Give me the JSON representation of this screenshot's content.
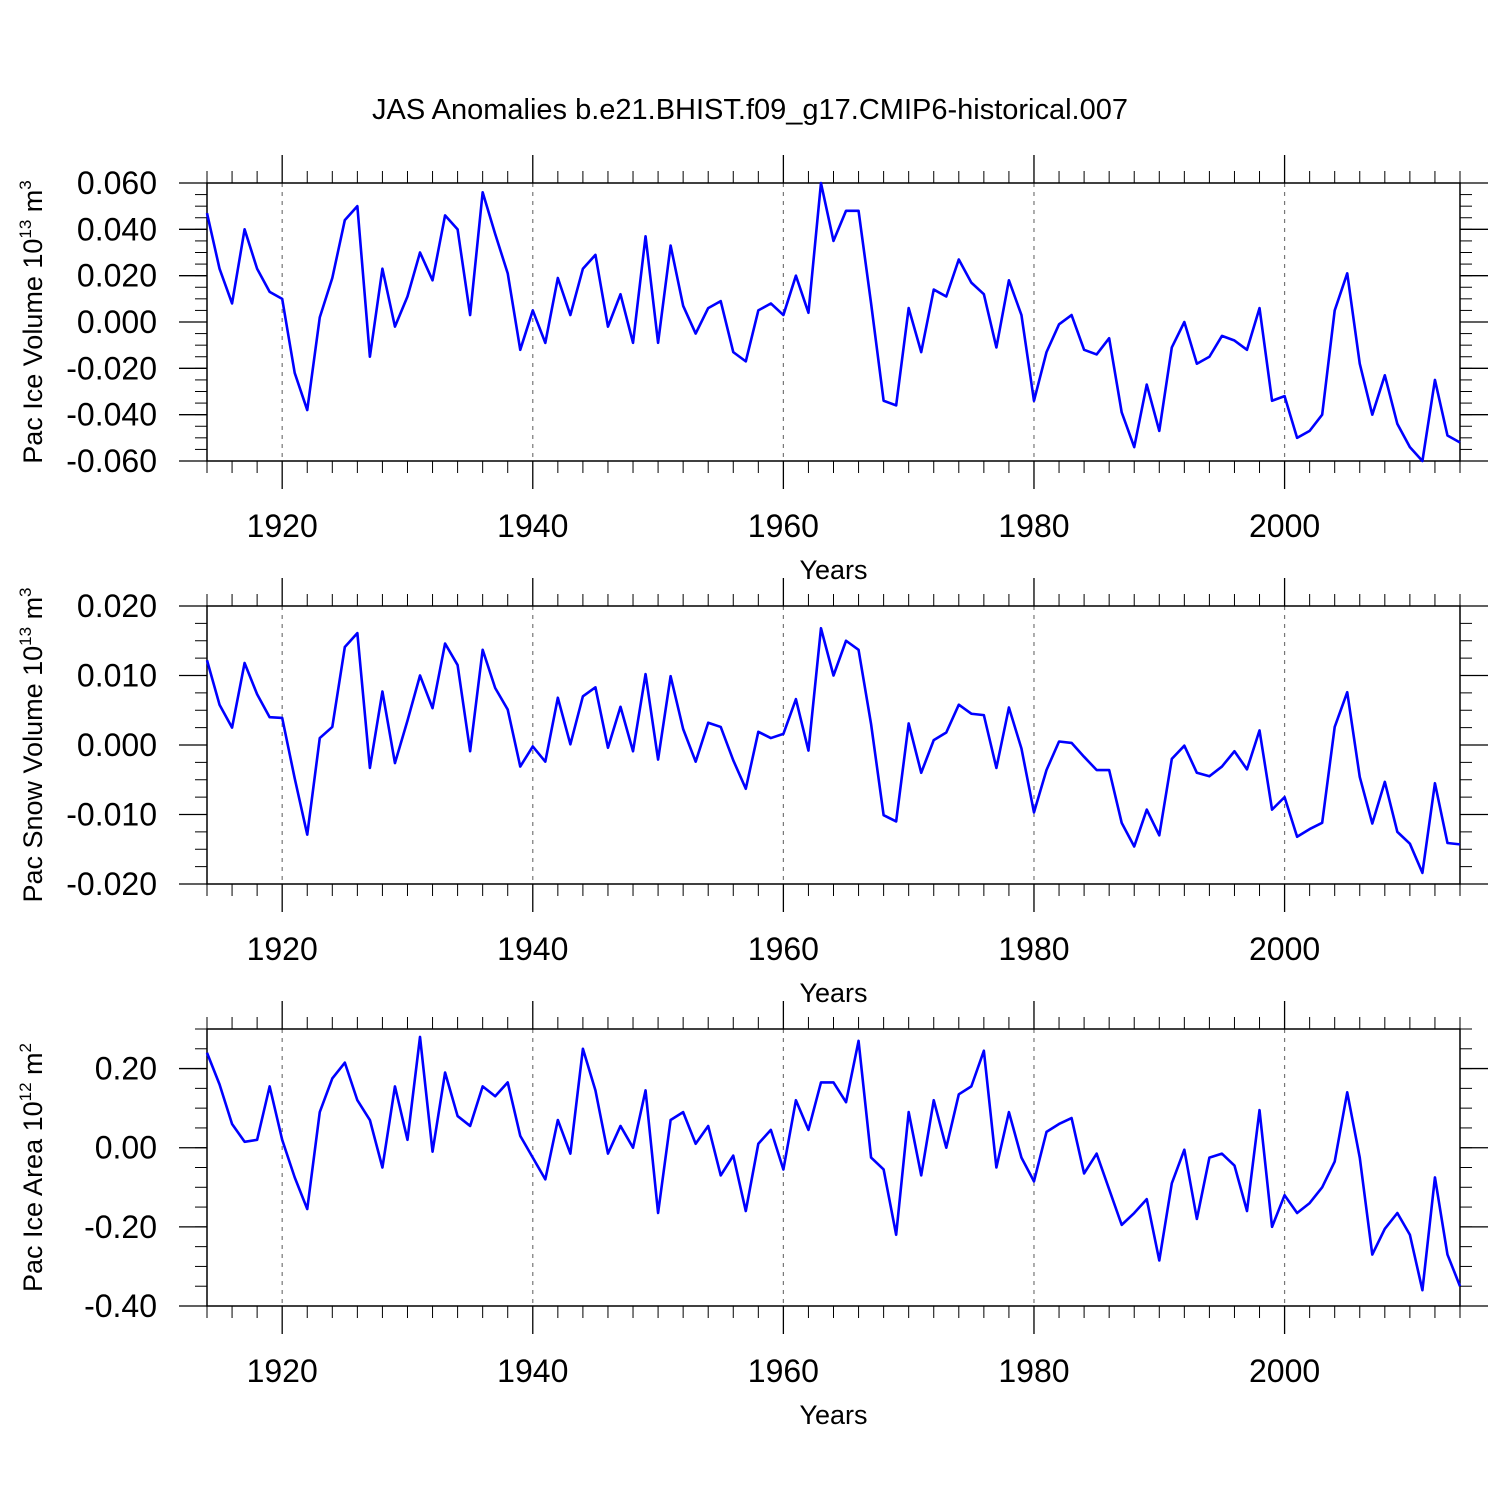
{
  "title": "JAS Anomalies b.e21.BHIST.f09_g17.CMIP6-historical.007",
  "line_color": "#0000ff",
  "chart_data": [
    {
      "type": "line",
      "ylabel": {
        "text": "Pac Ice Volume 10",
        "exp": "13",
        "unit": "m",
        "unit_exp": "3"
      },
      "xlabel": "Years",
      "xlim": [
        1914,
        2014
      ],
      "ylim": [
        -0.06,
        0.06
      ],
      "xticks": [
        "1920",
        "1940",
        "1960",
        "1980",
        "2000"
      ],
      "xtick_values": [
        1920,
        1940,
        1960,
        1980,
        2000
      ],
      "yticks": [
        "0.060",
        "0.040",
        "0.020",
        "0.000",
        "-0.020",
        "-0.040",
        "-0.060"
      ],
      "ytick_values": [
        0.06,
        0.04,
        0.02,
        0.0,
        -0.02,
        -0.04,
        -0.06
      ],
      "grid_x_dashed": true,
      "x_start": 1914,
      "values": [
        0.047,
        0.023,
        0.008,
        0.04,
        0.023,
        0.013,
        0.01,
        -0.022,
        -0.038,
        0.002,
        0.019,
        0.044,
        0.05,
        -0.015,
        0.023,
        -0.002,
        0.011,
        0.03,
        0.018,
        0.046,
        0.04,
        0.003,
        0.056,
        0.038,
        0.021,
        -0.012,
        0.005,
        -0.009,
        0.019,
        0.003,
        0.023,
        0.029,
        -0.002,
        0.012,
        -0.009,
        0.037,
        -0.009,
        0.033,
        0.007,
        -0.005,
        0.006,
        0.009,
        -0.013,
        -0.017,
        0.005,
        0.008,
        0.003,
        0.02,
        0.004,
        0.06,
        0.035,
        0.048,
        0.048,
        0.008,
        -0.034,
        -0.036,
        0.006,
        -0.013,
        0.014,
        0.011,
        0.027,
        0.017,
        0.012,
        -0.011,
        0.018,
        0.003,
        -0.034,
        -0.013,
        -0.001,
        0.003,
        -0.012,
        -0.014,
        -0.007,
        -0.039,
        -0.054,
        -0.027,
        -0.047,
        -0.011,
        0.0,
        -0.018,
        -0.015,
        -0.006,
        -0.008,
        -0.012,
        0.006,
        -0.034,
        -0.032,
        -0.05,
        -0.047,
        -0.04,
        0.005,
        0.021,
        -0.018,
        -0.04,
        -0.023,
        -0.044,
        -0.054,
        -0.06,
        -0.025,
        -0.049,
        -0.052
      ]
    },
    {
      "type": "line",
      "ylabel": {
        "text": "Pac Snow Volume 10",
        "exp": "13",
        "unit": "m",
        "unit_exp": "3"
      },
      "xlabel": "Years",
      "xlim": [
        1914,
        2014
      ],
      "ylim": [
        -0.02,
        0.02
      ],
      "xticks": [
        "1920",
        "1940",
        "1960",
        "1980",
        "2000"
      ],
      "xtick_values": [
        1920,
        1940,
        1960,
        1980,
        2000
      ],
      "yticks": [
        "0.020",
        "0.010",
        "0.000",
        "-0.010",
        "-0.020"
      ],
      "ytick_values": [
        0.02,
        0.01,
        0.0,
        -0.01,
        -0.02
      ],
      "grid_x_dashed": true,
      "x_start": 1914,
      "values": [
        0.0122,
        0.0058,
        0.0025,
        0.0118,
        0.0073,
        0.004,
        0.0039,
        -0.0048,
        -0.0129,
        0.001,
        0.0026,
        0.0141,
        0.0161,
        -0.0033,
        0.0077,
        -0.0026,
        0.0035,
        0.01,
        0.0053,
        0.0146,
        0.0115,
        -0.0009,
        0.0137,
        0.0082,
        0.0051,
        -0.0031,
        -0.0002,
        -0.0024,
        0.0068,
        0.0001,
        0.007,
        0.0083,
        -0.0004,
        0.0055,
        -0.0009,
        0.0102,
        -0.0021,
        0.0099,
        0.0023,
        -0.0024,
        0.0032,
        0.0026,
        -0.0022,
        -0.0063,
        0.0019,
        0.001,
        0.0016,
        0.0066,
        -0.0008,
        0.0168,
        0.01,
        0.015,
        0.0137,
        0.003,
        -0.0101,
        -0.011,
        0.0031,
        -0.004,
        0.0007,
        0.0018,
        0.0058,
        0.0045,
        0.0043,
        -0.0033,
        0.0054,
        -0.0005,
        -0.0097,
        -0.0036,
        0.0005,
        0.0003,
        -0.0017,
        -0.0036,
        -0.0036,
        -0.0112,
        -0.0146,
        -0.0093,
        -0.013,
        -0.002,
        -0.0001,
        -0.004,
        -0.0045,
        -0.0031,
        -0.0009,
        -0.0035,
        0.0021,
        -0.0093,
        -0.0075,
        -0.0132,
        -0.0121,
        -0.0112,
        0.0026,
        0.0076,
        -0.0046,
        -0.0113,
        -0.0053,
        -0.0125,
        -0.0142,
        -0.0184,
        -0.0055,
        -0.0141,
        -0.0143
      ]
    },
    {
      "type": "line",
      "ylabel": {
        "text": "Pac Ice Area 10",
        "exp": "12",
        "unit": "m",
        "unit_exp": "2"
      },
      "xlabel": "Years",
      "xlim": [
        1914,
        2014
      ],
      "ylim": [
        -0.4,
        0.3
      ],
      "xticks": [
        "1920",
        "1940",
        "1960",
        "1980",
        "2000"
      ],
      "xtick_values": [
        1920,
        1940,
        1960,
        1980,
        2000
      ],
      "yticks": [
        "0.20",
        "0.00",
        "-0.20",
        "-0.40"
      ],
      "ytick_values": [
        0.2,
        0.0,
        -0.2,
        -0.4
      ],
      "grid_x_dashed": true,
      "x_start": 1914,
      "values": [
        0.24,
        0.16,
        0.06,
        0.015,
        0.02,
        0.155,
        0.02,
        -0.075,
        -0.155,
        0.09,
        0.175,
        0.215,
        0.12,
        0.07,
        -0.05,
        0.155,
        0.02,
        0.28,
        -0.01,
        0.19,
        0.08,
        0.055,
        0.155,
        0.13,
        0.165,
        0.03,
        -0.025,
        -0.08,
        0.07,
        -0.015,
        0.25,
        0.145,
        -0.015,
        0.055,
        0.0,
        0.145,
        -0.165,
        0.07,
        0.09,
        0.01,
        0.055,
        -0.07,
        -0.02,
        -0.16,
        0.01,
        0.045,
        -0.055,
        0.12,
        0.045,
        0.165,
        0.165,
        0.115,
        0.27,
        -0.025,
        -0.055,
        -0.22,
        0.09,
        -0.07,
        0.12,
        0.0,
        0.135,
        0.155,
        0.245,
        -0.05,
        0.09,
        -0.025,
        -0.085,
        0.04,
        0.06,
        0.075,
        -0.065,
        -0.015,
        -0.105,
        -0.195,
        -0.165,
        -0.13,
        -0.285,
        -0.09,
        -0.005,
        -0.18,
        -0.025,
        -0.015,
        -0.045,
        -0.16,
        0.095,
        -0.2,
        -0.12,
        -0.165,
        -0.14,
        -0.1,
        -0.035,
        0.14,
        -0.025,
        -0.27,
        -0.205,
        -0.165,
        -0.22,
        -0.36,
        -0.075,
        -0.27,
        -0.35
      ]
    }
  ]
}
